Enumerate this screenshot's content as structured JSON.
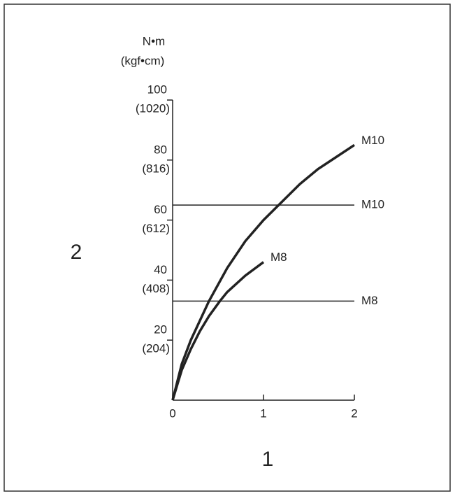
{
  "chart_data": {
    "type": "line",
    "y_unit_label": "N•m",
    "y_unit_label_secondary": "(kgf•cm)",
    "y_axis_label": "2",
    "x_axis_label": "1",
    "xlim": [
      0,
      2
    ],
    "xticks": [
      0,
      1,
      2
    ],
    "ylim": [
      0,
      100
    ],
    "yticks": [
      {
        "value": 20,
        "label": "20",
        "secondary_label": "(204)"
      },
      {
        "value": 40,
        "label": "40",
        "secondary_label": "(408)"
      },
      {
        "value": 60,
        "label": "60",
        "secondary_label": "(612)"
      },
      {
        "value": 80,
        "label": "80",
        "secondary_label": "(816)"
      },
      {
        "value": 100,
        "label": "100",
        "secondary_label": "(1020)"
      }
    ],
    "series": [
      {
        "name": "M10",
        "color": "#222222",
        "width": 3.5,
        "x": [
          0,
          0.1,
          0.2,
          0.4,
          0.6,
          0.8,
          1.0,
          1.2,
          1.4,
          1.6,
          1.8,
          2.0
        ],
        "values": [
          0,
          12,
          20,
          33,
          44,
          53,
          60,
          66,
          72,
          77,
          81,
          85
        ]
      },
      {
        "name": "M10",
        "color": "#222222",
        "width": 1.5,
        "x": [
          0,
          2
        ],
        "values": [
          65,
          65
        ]
      },
      {
        "name": "M8",
        "color": "#222222",
        "width": 3.5,
        "x": [
          0,
          0.1,
          0.2,
          0.3,
          0.4,
          0.52,
          0.6,
          0.8,
          1.0
        ],
        "values": [
          0,
          10,
          17,
          23,
          28,
          33,
          36,
          41.5,
          46
        ]
      },
      {
        "name": "M8",
        "color": "#222222",
        "width": 1.5,
        "x": [
          0,
          2
        ],
        "values": [
          33,
          33
        ]
      }
    ]
  }
}
